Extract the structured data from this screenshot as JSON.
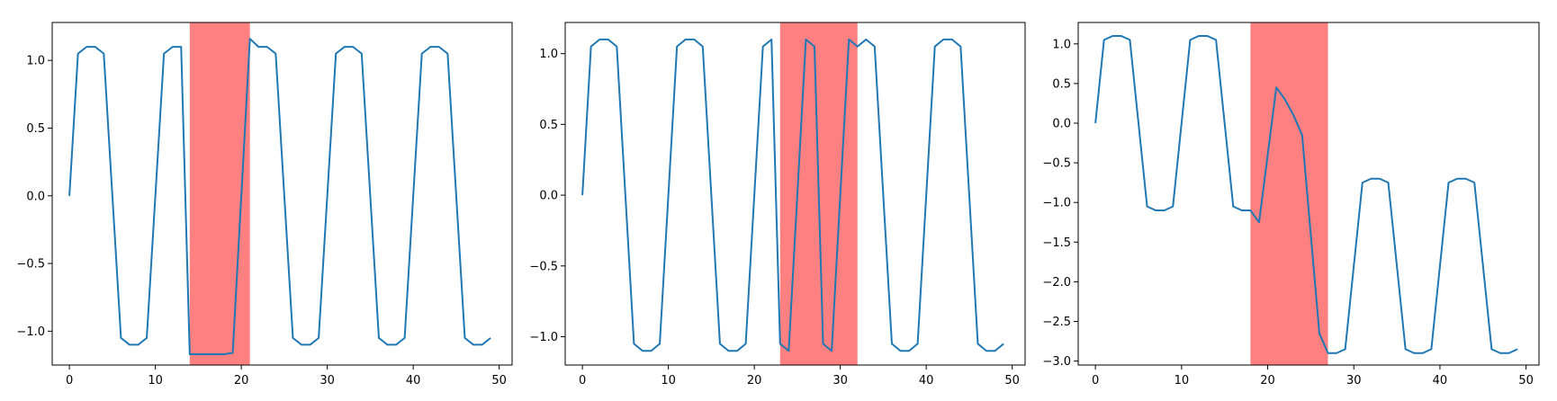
{
  "chart_data": [
    {
      "type": "line",
      "series_color": "#1f77b4",
      "highlight_color": "#ff8080",
      "highlight": {
        "x_start": 14,
        "x_end": 21
      },
      "xlim": [
        -2,
        51.5
      ],
      "ylim": [
        -1.25,
        1.28
      ],
      "xticks": [
        0,
        10,
        20,
        30,
        40,
        50
      ],
      "yticks": [
        -1.0,
        -0.5,
        0.0,
        0.5,
        1.0
      ],
      "xtick_labels": [
        "0",
        "10",
        "20",
        "30",
        "40",
        "50"
      ],
      "ytick_labels": [
        "−1.0",
        "−0.5",
        "0.0",
        "0.5",
        "1.0"
      ],
      "series": [
        {
          "x": [
            0,
            1,
            2,
            3,
            4,
            5,
            6,
            7,
            8,
            9,
            10,
            11,
            12,
            13,
            14,
            15,
            16,
            17,
            18,
            19,
            20,
            21,
            22,
            23,
            24,
            25,
            26,
            27,
            28,
            29,
            30,
            31,
            32,
            33,
            34,
            35,
            36,
            37,
            38,
            39,
            40,
            41,
            42,
            43,
            44,
            45,
            46,
            47,
            48,
            49
          ],
          "y": [
            0.0,
            1.05,
            1.1,
            1.1,
            1.05,
            0.0,
            -1.05,
            -1.1,
            -1.1,
            -1.05,
            0.0,
            1.05,
            1.1,
            1.1,
            -1.17,
            -1.17,
            -1.17,
            -1.17,
            -1.17,
            -1.16,
            0.0,
            1.16,
            1.1,
            1.1,
            1.05,
            0.0,
            -1.05,
            -1.1,
            -1.1,
            -1.05,
            0.0,
            1.05,
            1.1,
            1.1,
            1.05,
            0.0,
            -1.05,
            -1.1,
            -1.1,
            -1.05,
            0.0,
            1.05,
            1.1,
            1.1,
            1.05,
            0.0,
            -1.05,
            -1.1,
            -1.1,
            -1.05
          ]
        }
      ]
    },
    {
      "type": "line",
      "series_color": "#1f77b4",
      "highlight_color": "#ff8080",
      "highlight": {
        "x_start": 23,
        "x_end": 32
      },
      "xlim": [
        -2,
        51.5
      ],
      "ylim": [
        -1.2,
        1.22
      ],
      "xticks": [
        0,
        10,
        20,
        30,
        40,
        50
      ],
      "yticks": [
        -1.0,
        -0.5,
        0.0,
        0.5,
        1.0
      ],
      "xtick_labels": [
        "0",
        "10",
        "20",
        "30",
        "40",
        "50"
      ],
      "ytick_labels": [
        "−1.0",
        "−0.5",
        "0.0",
        "0.5",
        "1.0"
      ],
      "series": [
        {
          "x": [
            0,
            1,
            2,
            3,
            4,
            5,
            6,
            7,
            8,
            9,
            10,
            11,
            12,
            13,
            14,
            15,
            16,
            17,
            18,
            19,
            20,
            21,
            22,
            23,
            24,
            25,
            26,
            27,
            28,
            29,
            30,
            31,
            32,
            33,
            34,
            35,
            36,
            37,
            38,
            39,
            40,
            41,
            42,
            43,
            44,
            45,
            46,
            47,
            48,
            49
          ],
          "y": [
            0.0,
            1.05,
            1.1,
            1.1,
            1.05,
            0.0,
            -1.05,
            -1.1,
            -1.1,
            -1.05,
            0.0,
            1.05,
            1.1,
            1.1,
            1.05,
            0.0,
            -1.05,
            -1.1,
            -1.1,
            -1.05,
            0.0,
            1.05,
            1.1,
            -1.05,
            -1.1,
            0.0,
            1.1,
            1.05,
            -1.05,
            -1.1,
            0.0,
            1.1,
            1.05,
            1.1,
            1.05,
            0.0,
            -1.05,
            -1.1,
            -1.1,
            -1.05,
            0.0,
            1.05,
            1.1,
            1.1,
            1.05,
            0.0,
            -1.05,
            -1.1,
            -1.1,
            -1.05
          ]
        }
      ]
    },
    {
      "type": "line",
      "series_color": "#1f77b4",
      "highlight_color": "#ff8080",
      "highlight": {
        "x_start": 18,
        "x_end": 27
      },
      "xlim": [
        -2,
        51.5
      ],
      "ylim": [
        -3.05,
        1.27
      ],
      "xticks": [
        0,
        10,
        20,
        30,
        40,
        50
      ],
      "yticks": [
        -3.0,
        -2.5,
        -2.0,
        -1.5,
        -1.0,
        -0.5,
        0.0,
        0.5,
        1.0
      ],
      "xtick_labels": [
        "0",
        "10",
        "20",
        "30",
        "40",
        "50"
      ],
      "ytick_labels": [
        "−3.0",
        "−2.5",
        "−2.0",
        "−1.5",
        "−1.0",
        "−0.5",
        "0.0",
        "0.5",
        "1.0"
      ],
      "series": [
        {
          "x": [
            0,
            1,
            2,
            3,
            4,
            5,
            6,
            7,
            8,
            9,
            10,
            11,
            12,
            13,
            14,
            15,
            16,
            17,
            18,
            19,
            20,
            21,
            22,
            23,
            24,
            25,
            26,
            27,
            28,
            29,
            30,
            31,
            32,
            33,
            34,
            35,
            36,
            37,
            38,
            39,
            40,
            41,
            42,
            43,
            44,
            45,
            46,
            47,
            48,
            49
          ],
          "y": [
            0.0,
            1.05,
            1.1,
            1.1,
            1.05,
            0.0,
            -1.05,
            -1.1,
            -1.1,
            -1.05,
            0.0,
            1.05,
            1.1,
            1.1,
            1.05,
            0.0,
            -1.05,
            -1.1,
            -1.1,
            -1.25,
            -0.4,
            0.45,
            0.3,
            0.1,
            -0.15,
            -1.4,
            -2.65,
            -2.9,
            -2.9,
            -2.85,
            -1.8,
            -0.75,
            -0.7,
            -0.7,
            -0.75,
            -1.8,
            -2.85,
            -2.9,
            -2.9,
            -2.85,
            -1.8,
            -0.75,
            -0.7,
            -0.7,
            -0.75,
            -1.8,
            -2.85,
            -2.9,
            -2.9,
            -2.85
          ]
        }
      ]
    }
  ]
}
